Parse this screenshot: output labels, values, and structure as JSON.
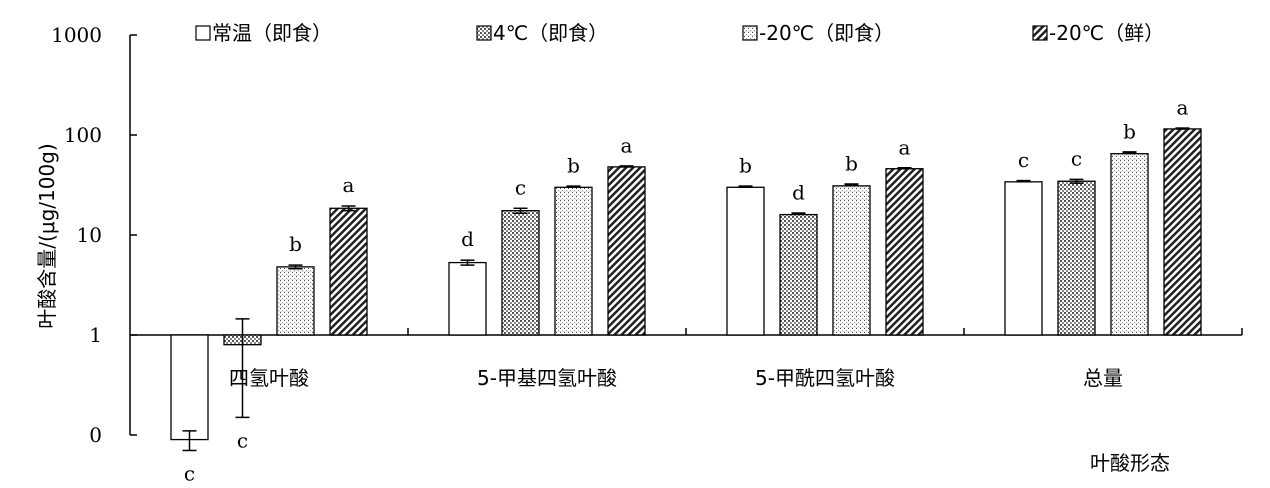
{
  "chart_data": {
    "type": "bar",
    "ylabel": "叶酸含量/(μg/100g)",
    "xlabel": "叶酸形态",
    "y_scale": "log",
    "y_ticks": [
      {
        "value": 0.1,
        "label": "0"
      },
      {
        "value": 1,
        "label": "1"
      },
      {
        "value": 10,
        "label": "10"
      },
      {
        "value": 100,
        "label": "100"
      },
      {
        "value": 1000,
        "label": "1000"
      }
    ],
    "ylim": [
      0.1,
      1000
    ],
    "baseline": 1,
    "categories": [
      "四氢叶酸",
      "5-甲基四氢叶酸",
      "5-甲酰四氢叶酸",
      "总量"
    ],
    "legend_position": "top",
    "series": [
      {
        "name": "常温（即食）",
        "pattern": "white",
        "values": [
          0.09,
          5.3,
          30,
          34
        ],
        "errors": [
          0.02,
          0.3,
          0.5,
          0.6
        ],
        "significance": [
          "c",
          "d",
          "b",
          "c"
        ]
      },
      {
        "name": "4℃（即食）",
        "pattern": "dots",
        "values": [
          0.8,
          17.5,
          16,
          34.5
        ],
        "errors": [
          0.65,
          1.0,
          0.4,
          1.5
        ],
        "significance": [
          "c",
          "c",
          "d",
          "c"
        ]
      },
      {
        "name": "-20℃（即食）",
        "pattern": "grid",
        "values": [
          4.8,
          30,
          31,
          65
        ],
        "errors": [
          0.2,
          0.5,
          1.0,
          2.0
        ],
        "significance": [
          "b",
          "b",
          "b",
          "b"
        ]
      },
      {
        "name": "-20℃（鲜）",
        "pattern": "diagonal",
        "values": [
          18.5,
          48,
          46,
          115
        ],
        "errors": [
          1.0,
          0.5,
          0.5,
          1.0
        ],
        "significance": [
          "a",
          "a",
          "a",
          "a"
        ]
      }
    ]
  }
}
